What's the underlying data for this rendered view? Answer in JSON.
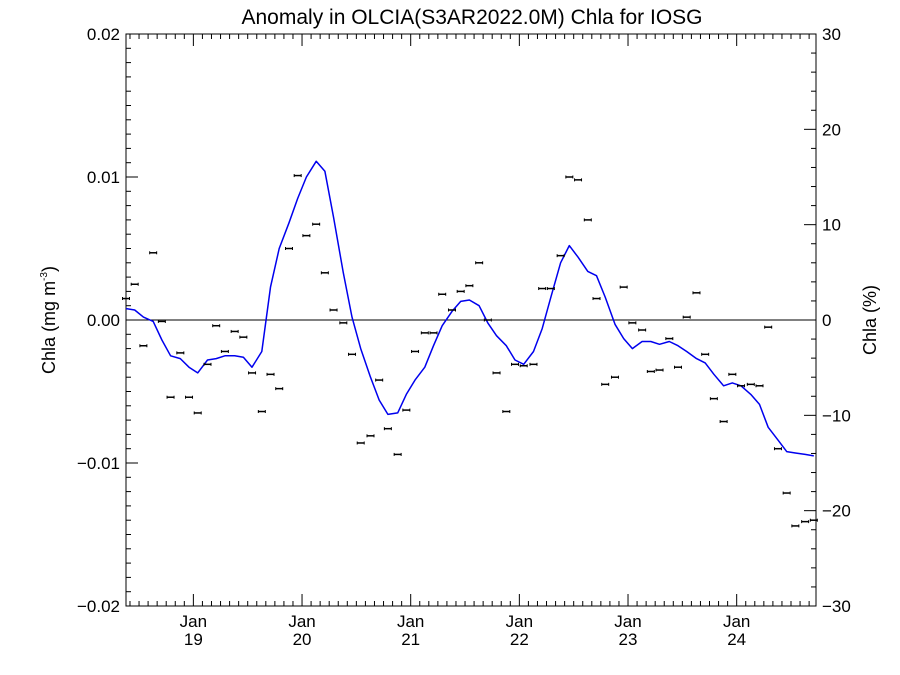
{
  "chart_data": {
    "type": "line",
    "title": "Anomaly in OLCIA(S3AR2022.0M) Chla for IOSG",
    "ylabel_left": "Chla (mg m",
    "ylabel_left_sup": "-3",
    "ylabel_left_close": ")",
    "ylabel_right": "Chla (%)",
    "xlim": [
      2018.38,
      2024.73
    ],
    "ylim": [
      -0.02,
      0.02
    ],
    "ylim_right": [
      -30,
      30
    ],
    "zero_line": true,
    "grid": false,
    "x_ticks": [
      {
        "value": 2019.0,
        "line1": "Jan",
        "line2": "19"
      },
      {
        "value": 2020.0,
        "line1": "Jan",
        "line2": "20"
      },
      {
        "value": 2021.0,
        "line1": "Jan",
        "line2": "21"
      },
      {
        "value": 2022.0,
        "line1": "Jan",
        "line2": "22"
      },
      {
        "value": 2023.0,
        "line1": "Jan",
        "line2": "23"
      },
      {
        "value": 2024.0,
        "line1": "Jan",
        "line2": "24"
      }
    ],
    "y_ticks_left": [
      {
        "value": 0.02,
        "label": "0.02"
      },
      {
        "value": 0.01,
        "label": "0.01"
      },
      {
        "value": 0.0,
        "label": "0.00"
      },
      {
        "value": -0.01,
        "label": "−0.01"
      },
      {
        "value": -0.02,
        "label": "−0.02"
      }
    ],
    "y_ticks_right": [
      {
        "value": 30,
        "label": "30"
      },
      {
        "value": 20,
        "label": "20"
      },
      {
        "value": 10,
        "label": "10"
      },
      {
        "value": 0,
        "label": "0"
      },
      {
        "value": -10,
        "label": "−10"
      },
      {
        "value": -20,
        "label": "−20"
      },
      {
        "value": -30,
        "label": "−30"
      }
    ],
    "series": [
      {
        "kind": "points",
        "color": "#000000",
        "x": [
          2018.38,
          2018.46,
          2018.54,
          2018.63,
          2018.71,
          2018.79,
          2018.88,
          2018.96,
          2019.04,
          2019.13,
          2019.21,
          2019.29,
          2019.38,
          2019.46,
          2019.54,
          2019.63,
          2019.71,
          2019.79,
          2019.88,
          2019.96,
          2020.04,
          2020.13,
          2020.21,
          2020.29,
          2020.38,
          2020.46,
          2020.54,
          2020.63,
          2020.71,
          2020.79,
          2020.88,
          2020.96,
          2021.04,
          2021.13,
          2021.21,
          2021.29,
          2021.38,
          2021.46,
          2021.54,
          2021.63,
          2021.71,
          2021.79,
          2021.88,
          2021.96,
          2022.04,
          2022.13,
          2022.21,
          2022.29,
          2022.38,
          2022.46,
          2022.54,
          2022.63,
          2022.71,
          2022.79,
          2022.88,
          2022.96,
          2023.04,
          2023.13,
          2023.21,
          2023.29,
          2023.38,
          2023.46,
          2023.54,
          2023.63,
          2023.71,
          2023.79,
          2023.88,
          2023.96,
          2024.04,
          2024.13,
          2024.21,
          2024.29,
          2024.38,
          2024.46,
          2024.54,
          2024.63,
          2024.71
        ],
        "values": [
          0.0015,
          0.0025,
          -0.0018,
          0.0047,
          -0.0001,
          -0.0054,
          -0.0023,
          -0.0054,
          -0.0065,
          -0.0031,
          -0.0004,
          -0.0022,
          -0.0008,
          -0.0012,
          -0.0037,
          -0.0064,
          -0.0038,
          -0.0048,
          0.005,
          0.0101,
          0.0059,
          0.0067,
          0.0033,
          0.0007,
          -0.0002,
          -0.0024,
          -0.0086,
          -0.0081,
          -0.0042,
          -0.0076,
          -0.0094,
          -0.0063,
          -0.0022,
          -0.0009,
          -0.0009,
          0.0018,
          0.0007,
          0.002,
          0.0024,
          0.004,
          0.0,
          -0.0037,
          -0.0064,
          -0.0031,
          -0.0032,
          -0.0031,
          0.0022,
          0.0022,
          0.0045,
          0.01,
          0.0098,
          0.007,
          0.0015,
          -0.0045,
          -0.004,
          0.0023,
          -0.0002,
          -0.0007,
          -0.0036,
          -0.0035,
          -0.0013,
          -0.0033,
          0.0002,
          0.0019,
          -0.0024,
          -0.0055,
          -0.0071,
          -0.0038,
          -0.0046,
          -0.0045,
          -0.0046,
          -0.0005,
          -0.009,
          -0.0121,
          -0.0144,
          -0.0141,
          -0.014
        ]
      },
      {
        "kind": "line",
        "color": "#0000ee",
        "x": [
          2018.38,
          2018.46,
          2018.54,
          2018.63,
          2018.71,
          2018.79,
          2018.88,
          2018.96,
          2019.04,
          2019.13,
          2019.21,
          2019.29,
          2019.38,
          2019.46,
          2019.54,
          2019.63,
          2019.71,
          2019.79,
          2019.88,
          2019.96,
          2020.04,
          2020.13,
          2020.21,
          2020.29,
          2020.38,
          2020.46,
          2020.54,
          2020.63,
          2020.71,
          2020.79,
          2020.88,
          2020.96,
          2021.04,
          2021.13,
          2021.21,
          2021.29,
          2021.38,
          2021.46,
          2021.54,
          2021.63,
          2021.71,
          2021.79,
          2021.88,
          2021.96,
          2022.04,
          2022.13,
          2022.21,
          2022.29,
          2022.38,
          2022.46,
          2022.54,
          2022.63,
          2022.71,
          2022.79,
          2022.88,
          2022.96,
          2023.04,
          2023.13,
          2023.21,
          2023.29,
          2023.38,
          2023.46,
          2023.54,
          2023.63,
          2023.71,
          2023.79,
          2023.88,
          2023.96,
          2024.04,
          2024.13,
          2024.21,
          2024.29,
          2024.38,
          2024.46,
          2024.54,
          2024.63,
          2024.71
        ],
        "values": [
          0.0008,
          0.0007,
          0.0002,
          -0.0001,
          -0.0014,
          -0.0025,
          -0.0027,
          -0.0033,
          -0.0037,
          -0.0028,
          -0.0027,
          -0.0025,
          -0.0025,
          -0.0026,
          -0.0033,
          -0.0022,
          0.0023,
          0.005,
          0.0068,
          0.0085,
          0.01,
          0.0111,
          0.0104,
          0.0072,
          0.0033,
          0.0002,
          -0.002,
          -0.004,
          -0.0056,
          -0.0066,
          -0.0065,
          -0.0052,
          -0.0042,
          -0.0033,
          -0.0018,
          -0.0004,
          0.0006,
          0.0013,
          0.0014,
          0.001,
          -0.0002,
          -0.0011,
          -0.0018,
          -0.0028,
          -0.0031,
          -0.0022,
          -0.0006,
          0.0016,
          0.004,
          0.0052,
          0.0044,
          0.0034,
          0.0031,
          0.0016,
          -0.0003,
          -0.0013,
          -0.002,
          -0.0015,
          -0.0015,
          -0.0017,
          -0.0015,
          -0.0018,
          -0.0022,
          -0.0027,
          -0.003,
          -0.0038,
          -0.0046,
          -0.0044,
          -0.0046,
          -0.0052,
          -0.0059,
          -0.0075,
          -0.0084,
          -0.0092,
          -0.0093,
          -0.0094,
          -0.0095
        ]
      }
    ]
  }
}
